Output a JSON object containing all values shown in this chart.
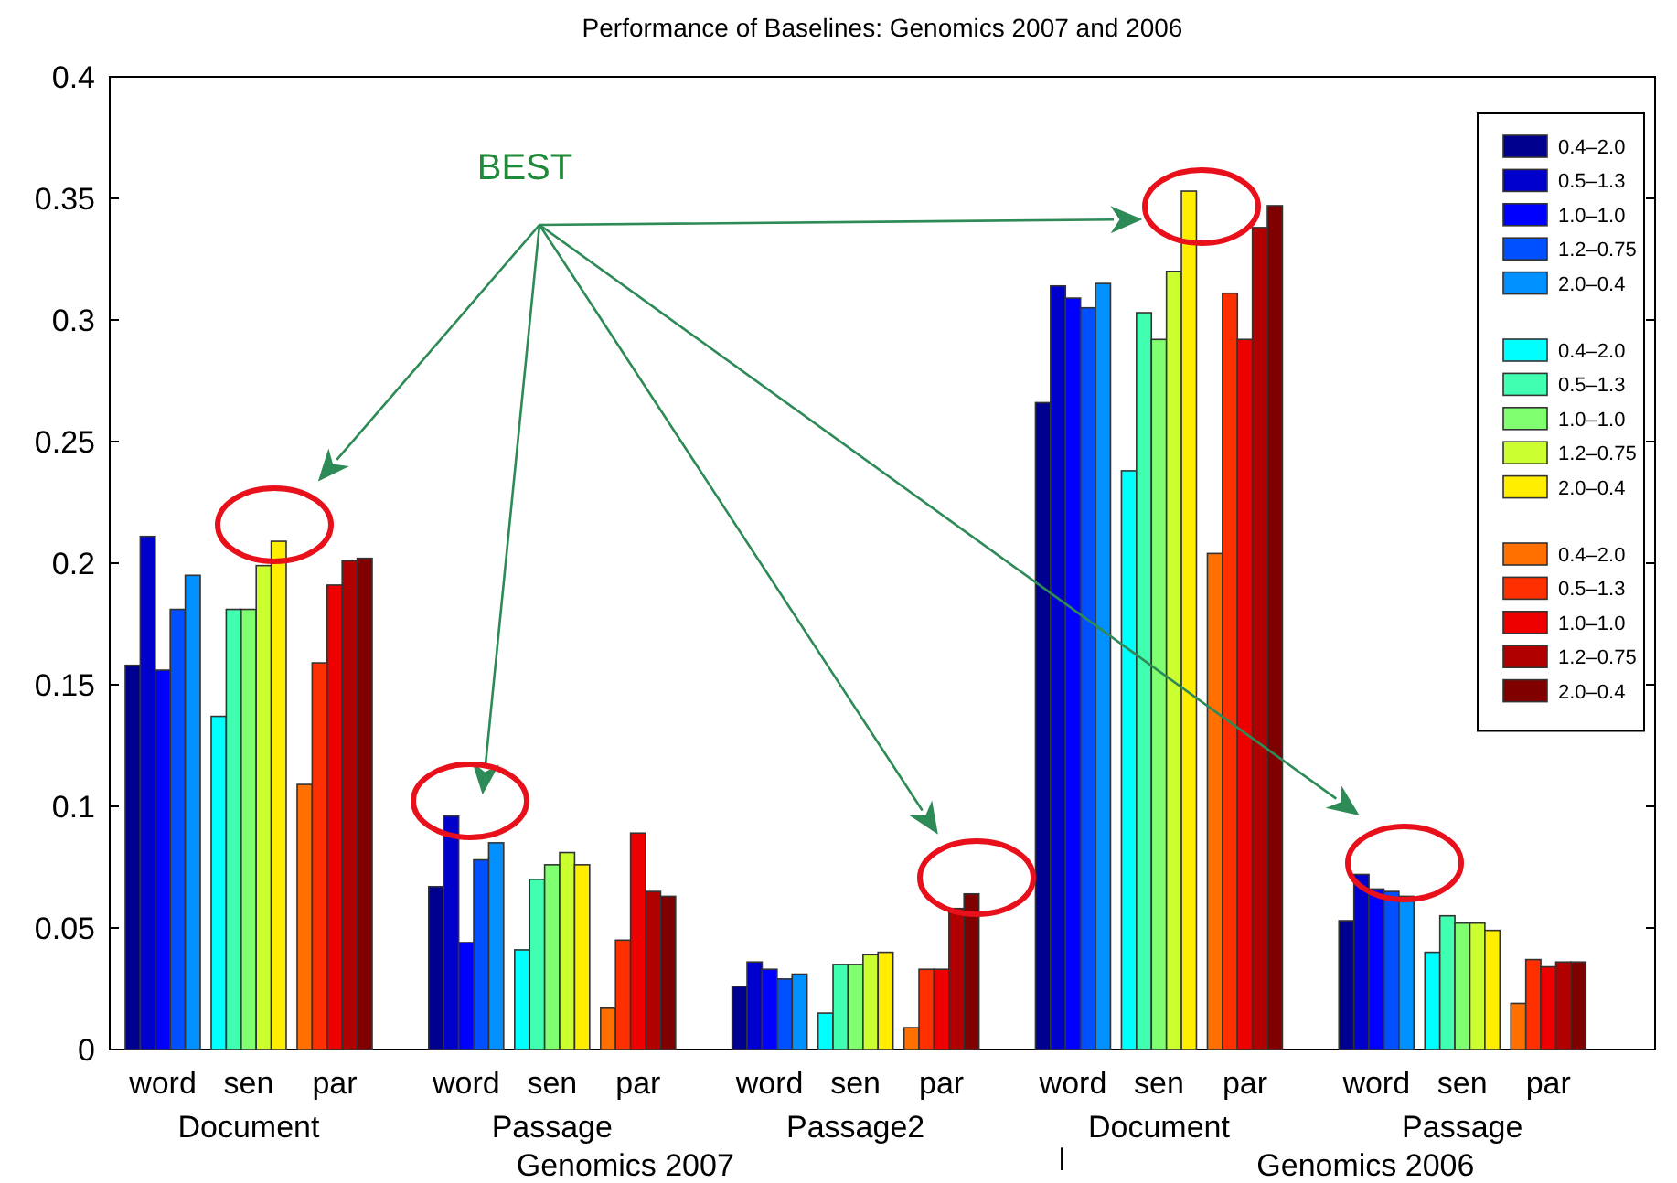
{
  "chart_data": {
    "type": "bar",
    "title": "Performance of Baselines:  Genomics 2007 and 2006",
    "categories": [
      "word",
      "sen",
      "par",
      "word",
      "sen",
      "par",
      "word",
      "sen",
      "par",
      "word",
      "sen",
      "par",
      "word",
      "sen",
      "par"
    ],
    "series": [
      {
        "name": "0.4–2.0",
        "color": "#00008f",
        "values": [
          0.158,
          null,
          null,
          0.067,
          null,
          null,
          0.026,
          null,
          null,
          0.266,
          null,
          null,
          0.053,
          null,
          null
        ]
      },
      {
        "name": "0.5–1.3",
        "color": "#0000cc",
        "values": [
          0.211,
          null,
          null,
          0.096,
          null,
          null,
          0.036,
          null,
          null,
          0.314,
          null,
          null,
          0.072,
          null,
          null
        ]
      },
      {
        "name": "1.0–1.0",
        "color": "#0000ff",
        "values": [
          0.156,
          null,
          null,
          0.044,
          null,
          null,
          0.033,
          null,
          null,
          0.309,
          null,
          null,
          0.066,
          null,
          null
        ]
      },
      {
        "name": "1.2–0.75",
        "color": "#0050ff",
        "values": [
          0.181,
          null,
          null,
          0.078,
          null,
          null,
          0.029,
          null,
          null,
          0.305,
          null,
          null,
          0.065,
          null,
          null
        ]
      },
      {
        "name": "2.0–0.4",
        "color": "#0090ff",
        "values": [
          0.195,
          null,
          null,
          0.085,
          null,
          null,
          0.031,
          null,
          null,
          0.315,
          null,
          null,
          0.063,
          null,
          null
        ]
      },
      {
        "name": "0.4–2.0",
        "color": "#00ffff",
        "values": [
          null,
          0.137,
          null,
          null,
          0.041,
          null,
          null,
          0.015,
          null,
          null,
          0.238,
          null,
          null,
          0.04,
          null
        ]
      },
      {
        "name": "0.5–1.3",
        "color": "#40ffb0",
        "values": [
          null,
          0.181,
          null,
          null,
          0.07,
          null,
          null,
          0.035,
          null,
          null,
          0.303,
          null,
          null,
          0.055,
          null
        ]
      },
      {
        "name": "1.0–1.0",
        "color": "#80ff70",
        "values": [
          null,
          0.181,
          null,
          null,
          0.076,
          null,
          null,
          0.035,
          null,
          null,
          0.292,
          null,
          null,
          0.052,
          null
        ]
      },
      {
        "name": "1.2–0.75",
        "color": "#ccff30",
        "values": [
          null,
          0.199,
          null,
          null,
          0.081,
          null,
          null,
          0.039,
          null,
          null,
          0.32,
          null,
          null,
          0.052,
          null
        ]
      },
      {
        "name": "2.0–0.4",
        "color": "#ffee00",
        "values": [
          null,
          0.209,
          null,
          null,
          0.076,
          null,
          null,
          0.04,
          null,
          null,
          0.353,
          null,
          null,
          0.049,
          null
        ]
      },
      {
        "name": "0.4–2.0",
        "color": "#ff7000",
        "values": [
          null,
          null,
          0.109,
          null,
          null,
          0.017,
          null,
          null,
          0.009,
          null,
          null,
          0.204,
          null,
          null,
          0.019
        ]
      },
      {
        "name": "0.5–1.3",
        "color": "#ff3000",
        "values": [
          null,
          null,
          0.159,
          null,
          null,
          0.045,
          null,
          null,
          0.033,
          null,
          null,
          0.311,
          null,
          null,
          0.037
        ]
      },
      {
        "name": "1.0–1.0",
        "color": "#ee0000",
        "values": [
          null,
          null,
          0.191,
          null,
          null,
          0.089,
          null,
          null,
          0.033,
          null,
          null,
          0.292,
          null,
          null,
          0.034
        ]
      },
      {
        "name": "1.2–0.75",
        "color": "#b00000",
        "values": [
          null,
          null,
          0.201,
          null,
          null,
          0.065,
          null,
          null,
          0.058,
          null,
          null,
          0.338,
          null,
          null,
          0.036
        ]
      },
      {
        "name": "2.0–0.4",
        "color": "#800000",
        "values": [
          null,
          null,
          0.202,
          null,
          null,
          0.063,
          null,
          null,
          0.064,
          null,
          null,
          0.347,
          null,
          null,
          0.036
        ]
      }
    ],
    "ylim": [
      0,
      0.4
    ],
    "yticks": [
      0,
      0.05,
      0.1,
      0.15,
      0.2,
      0.25,
      0.3,
      0.35,
      0.4
    ],
    "legend": "top right",
    "annotations": [
      "BEST",
      "Document",
      "Passage",
      "Passage2",
      "Document",
      "Passage",
      "Genomics 2007",
      "l",
      "Genomics 2006"
    ]
  }
}
